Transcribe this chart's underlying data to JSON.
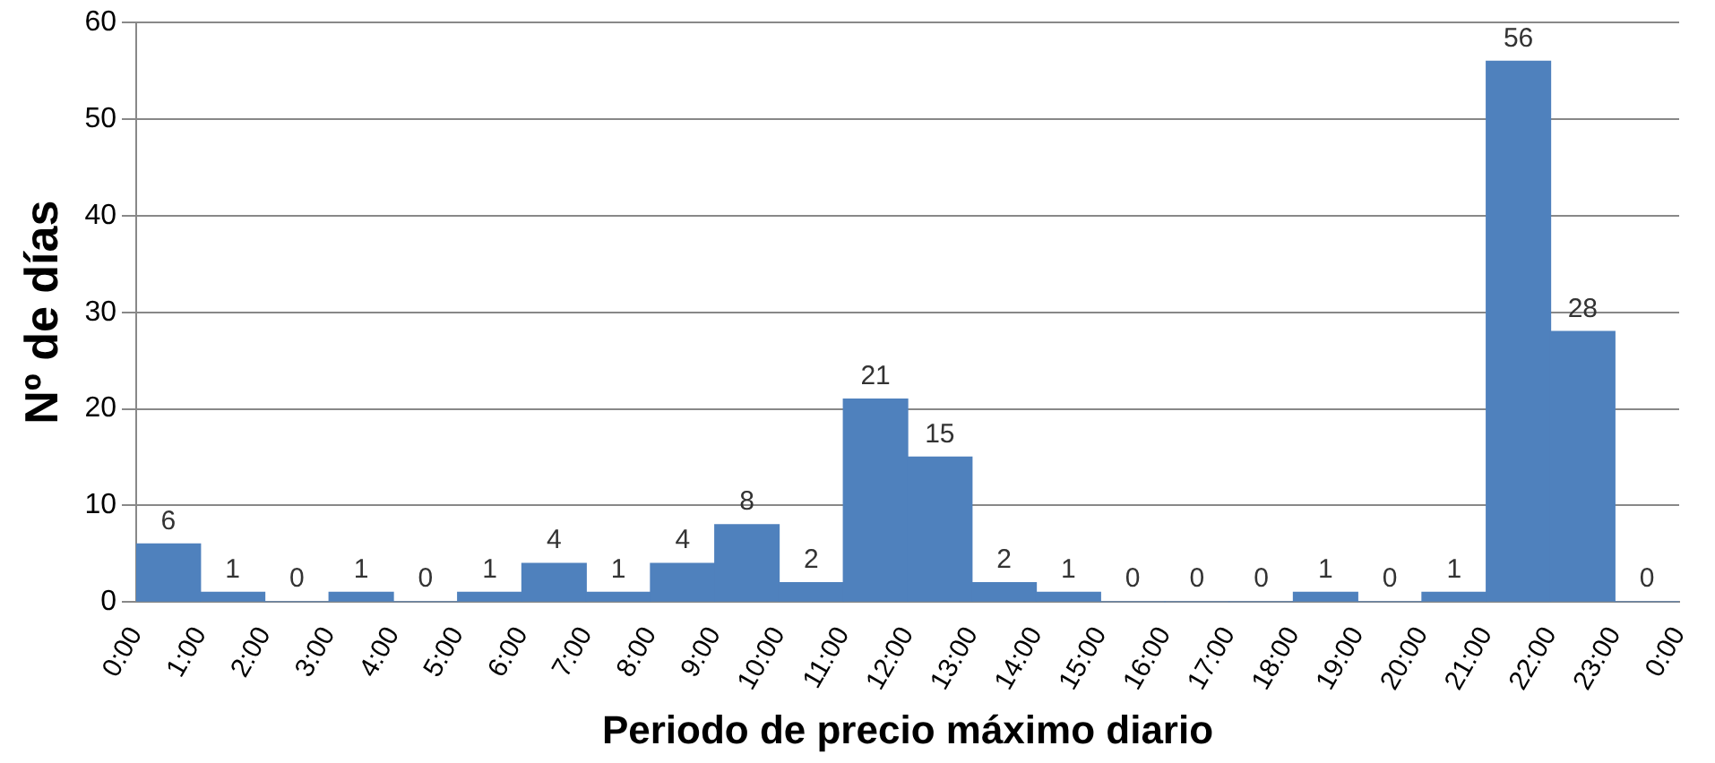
{
  "chart_data": {
    "type": "histogram",
    "xlabel": "Periodo de precio máximo diario",
    "ylabel": "Nº de días",
    "bins": [
      0,
      1,
      2,
      3,
      4,
      5,
      6,
      7,
      8,
      9,
      10,
      11,
      12,
      13,
      14,
      15,
      16,
      17,
      18,
      19,
      20,
      21,
      22,
      23,
      24
    ],
    "values": [
      6,
      1,
      0,
      1,
      0,
      1,
      4,
      1,
      4,
      8,
      2,
      21,
      15,
      2,
      1,
      0,
      0,
      0,
      1,
      0,
      1,
      56,
      28,
      0
    ],
    "color": "#4f81bd",
    "xlim": [
      0,
      24
    ],
    "xticks": [
      {
        "value": 0,
        "label": "0:00"
      },
      {
        "value": 1,
        "label": "1:00"
      },
      {
        "value": 2,
        "label": "2:00"
      },
      {
        "value": 3,
        "label": "3:00"
      },
      {
        "value": 4,
        "label": "4:00"
      },
      {
        "value": 5,
        "label": "5:00"
      },
      {
        "value": 6,
        "label": "6:00"
      },
      {
        "value": 7,
        "label": "7:00"
      },
      {
        "value": 8,
        "label": "8:00"
      },
      {
        "value": 9,
        "label": "9:00"
      },
      {
        "value": 10,
        "label": "10:00"
      },
      {
        "value": 11,
        "label": "11:00"
      },
      {
        "value": 12,
        "label": "12:00"
      },
      {
        "value": 13,
        "label": "13:00"
      },
      {
        "value": 14,
        "label": "14:00"
      },
      {
        "value": 15,
        "label": "15:00"
      },
      {
        "value": 16,
        "label": "16:00"
      },
      {
        "value": 17,
        "label": "17:00"
      },
      {
        "value": 18,
        "label": "18:00"
      },
      {
        "value": 19,
        "label": "19:00"
      },
      {
        "value": 20,
        "label": "20:00"
      },
      {
        "value": 21,
        "label": "21:00"
      },
      {
        "value": 22,
        "label": "22:00"
      },
      {
        "value": 23,
        "label": "23:00"
      },
      {
        "value": 24,
        "label": "0:00"
      }
    ],
    "ylim": [
      0,
      60
    ],
    "yticks": [
      0,
      10,
      20,
      30,
      40,
      50,
      60
    ],
    "grid": "y",
    "data_labels": true
  }
}
